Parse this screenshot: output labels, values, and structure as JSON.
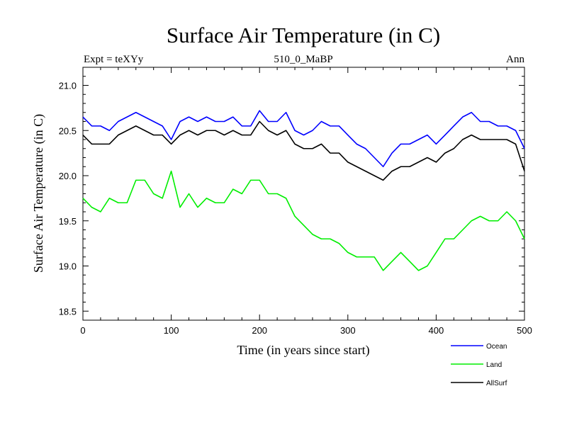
{
  "chart_data": {
    "type": "line",
    "title": "Surface Air Temperature (in C)",
    "subtitle_left": "Expt = teXYy",
    "subtitle_center": "510_0_MaBP",
    "subtitle_right": "Ann",
    "xlabel": "Time (in years since start)",
    "ylabel": "Surface Air Temperature (in C)",
    "xlim": [
      0,
      500
    ],
    "ylim": [
      18.4,
      21.2
    ],
    "xticks": [
      0,
      100,
      200,
      300,
      400,
      500
    ],
    "yticks": [
      18.5,
      19.0,
      19.5,
      20.0,
      20.5,
      21.0
    ],
    "xtick_labels": [
      "0",
      "100",
      "200",
      "300",
      "400",
      "500"
    ],
    "ytick_labels": [
      "18.5",
      "19.0",
      "19.5",
      "20.0",
      "20.5",
      "21.0"
    ],
    "legend_placement": "bottom-right, below plot",
    "series": [
      {
        "name": "Ocean",
        "color": "#0000ff",
        "x": [
          0,
          10,
          20,
          30,
          40,
          50,
          60,
          70,
          80,
          90,
          100,
          110,
          120,
          130,
          140,
          150,
          160,
          170,
          180,
          190,
          200,
          210,
          220,
          230,
          240,
          250,
          260,
          270,
          280,
          290,
          300,
          310,
          320,
          330,
          340,
          350,
          360,
          370,
          380,
          390,
          400,
          410,
          420,
          430,
          440,
          450,
          460,
          470,
          480,
          490,
          500
        ],
        "values": [
          20.65,
          20.55,
          20.55,
          20.5,
          20.6,
          20.65,
          20.7,
          20.65,
          20.6,
          20.55,
          20.4,
          20.6,
          20.65,
          20.6,
          20.65,
          20.6,
          20.6,
          20.65,
          20.55,
          20.55,
          20.72,
          20.6,
          20.6,
          20.7,
          20.5,
          20.45,
          20.5,
          20.6,
          20.55,
          20.55,
          20.45,
          20.35,
          20.3,
          20.2,
          20.1,
          20.25,
          20.35,
          20.35,
          20.4,
          20.45,
          20.35,
          20.45,
          20.55,
          20.65,
          20.7,
          20.6,
          20.6,
          20.55,
          20.55,
          20.5,
          20.3
        ]
      },
      {
        "name": "Land",
        "color": "#00ee00",
        "x": [
          0,
          10,
          20,
          30,
          40,
          50,
          60,
          70,
          80,
          90,
          100,
          110,
          120,
          130,
          140,
          150,
          160,
          170,
          180,
          190,
          200,
          210,
          220,
          230,
          240,
          250,
          260,
          270,
          280,
          290,
          300,
          310,
          320,
          330,
          340,
          350,
          360,
          370,
          380,
          390,
          400,
          410,
          420,
          430,
          440,
          450,
          460,
          470,
          480,
          490,
          500
        ],
        "values": [
          19.75,
          19.65,
          19.6,
          19.75,
          19.7,
          19.7,
          19.95,
          19.95,
          19.8,
          19.75,
          20.05,
          19.65,
          19.8,
          19.65,
          19.75,
          19.7,
          19.7,
          19.85,
          19.8,
          19.95,
          19.95,
          19.8,
          19.8,
          19.75,
          19.55,
          19.45,
          19.35,
          19.3,
          19.3,
          19.25,
          19.15,
          19.1,
          19.1,
          19.1,
          18.95,
          19.05,
          19.15,
          19.05,
          18.95,
          19.0,
          19.15,
          19.3,
          19.3,
          19.4,
          19.5,
          19.55,
          19.5,
          19.5,
          19.6,
          19.5,
          19.3
        ]
      },
      {
        "name": "AllSurf",
        "color": "#000000",
        "x": [
          0,
          10,
          20,
          30,
          40,
          50,
          60,
          70,
          80,
          90,
          100,
          110,
          120,
          130,
          140,
          150,
          160,
          170,
          180,
          190,
          200,
          210,
          220,
          230,
          240,
          250,
          260,
          270,
          280,
          290,
          300,
          310,
          320,
          330,
          340,
          350,
          360,
          370,
          380,
          390,
          400,
          410,
          420,
          430,
          440,
          450,
          460,
          470,
          480,
          490,
          500
        ],
        "values": [
          20.45,
          20.35,
          20.35,
          20.35,
          20.45,
          20.5,
          20.55,
          20.5,
          20.45,
          20.45,
          20.35,
          20.45,
          20.5,
          20.45,
          20.5,
          20.5,
          20.45,
          20.5,
          20.45,
          20.45,
          20.6,
          20.5,
          20.45,
          20.5,
          20.35,
          20.3,
          20.3,
          20.35,
          20.25,
          20.25,
          20.15,
          20.1,
          20.05,
          20.0,
          19.95,
          20.05,
          20.1,
          20.1,
          20.15,
          20.2,
          20.15,
          20.25,
          20.3,
          20.4,
          20.45,
          20.4,
          20.4,
          20.4,
          20.4,
          20.35,
          20.05
        ]
      }
    ]
  }
}
